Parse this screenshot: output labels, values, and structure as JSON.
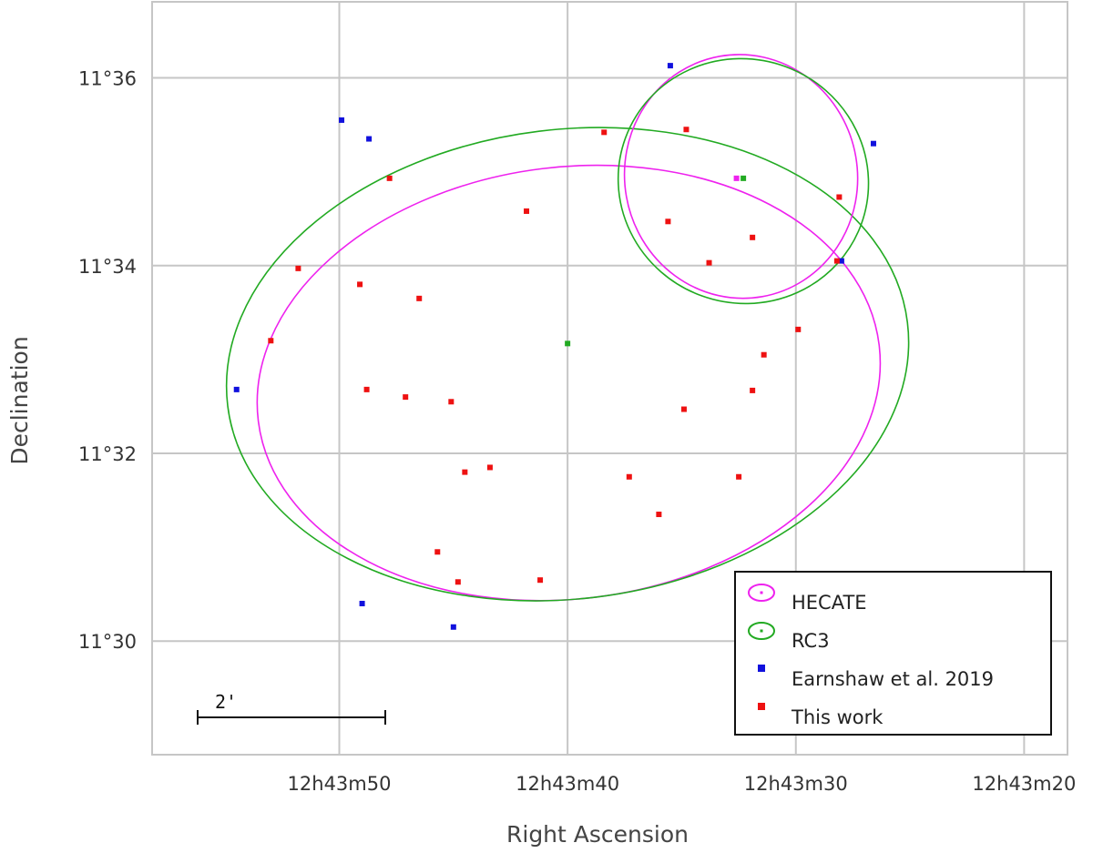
{
  "chart_data": {
    "type": "scatter",
    "title": "",
    "xlabel": "Right Ascension",
    "ylabel": "Declination",
    "x_units": "RA seconds after 12h43m00s",
    "y_units": "Dec arcminutes after 11°00'",
    "x_ticks": [
      {
        "value": 50,
        "label": "12h43m50"
      },
      {
        "value": 40,
        "label": "12h43m40"
      },
      {
        "value": 30,
        "label": "12h43m30"
      },
      {
        "value": 20,
        "label": "12h43m20"
      }
    ],
    "y_ticks": [
      {
        "value": 36,
        "label": "11°36"
      },
      {
        "value": 34,
        "label": "11°34"
      },
      {
        "value": 32,
        "label": "11°32"
      },
      {
        "value": 30,
        "label": "11°30"
      }
    ],
    "xlim": [
      58.2,
      18.1
    ],
    "ylim": [
      28.79,
      36.81
    ],
    "grid": true,
    "legend": {
      "position": "bottom-right",
      "entries": [
        {
          "label": "HECATE",
          "marker": "ellipse",
          "color": "#ee22ee"
        },
        {
          "label": "RC3",
          "marker": "ellipse",
          "color": "#22aa22"
        },
        {
          "label": "Earnshaw et al. 2019",
          "marker": "square",
          "color": "#1111dd"
        },
        {
          "label": "This work",
          "marker": "square",
          "color": "#ee1111"
        }
      ]
    },
    "scale_bar": {
      "label": "2'"
    },
    "ellipses": [
      {
        "series": "HECATE",
        "color": "#ee22ee",
        "center": [
          39.95,
          32.75
        ],
        "semi_x_sec": 13.7,
        "semi_y_arcmin": 2.3,
        "rotation_deg": -7
      },
      {
        "series": "RC3",
        "color": "#22aa22",
        "center": [
          40.0,
          32.95
        ],
        "semi_x_sec": 15.0,
        "semi_y_arcmin": 2.5,
        "rotation_deg": -7
      },
      {
        "series": "HECATE",
        "color": "#ee22ee",
        "center": [
          32.4,
          34.95
        ],
        "semi_x_sec": 5.1,
        "semi_y_arcmin": 1.3,
        "rotation_deg": -10
      },
      {
        "series": "RC3",
        "color": "#22aa22",
        "center": [
          32.3,
          34.9
        ],
        "semi_x_sec": 5.5,
        "semi_y_arcmin": 1.3,
        "rotation_deg": 20
      }
    ],
    "series": [
      {
        "name": "Earnshaw et al. 2019",
        "color": "#1111dd",
        "x": [
          35.5,
          48.7,
          49.9,
          54.5,
          49.0,
          45.0,
          26.6,
          28.0
        ],
        "y": [
          36.13,
          35.35,
          35.55,
          32.68,
          30.4,
          30.15,
          35.3,
          34.05
        ]
      },
      {
        "name": "This work",
        "color": "#ee1111",
        "x": [
          38.4,
          34.8,
          47.8,
          41.8,
          35.6,
          33.8,
          31.9,
          28.1,
          28.2,
          51.8,
          49.1,
          46.5,
          53.0,
          48.8,
          47.1,
          45.1,
          44.5,
          43.4,
          37.3,
          36.0,
          32.5,
          31.4,
          34.9,
          29.9,
          31.9,
          45.7,
          44.8,
          41.2
        ],
        "y": [
          35.42,
          35.45,
          34.93,
          34.58,
          34.47,
          34.03,
          34.3,
          34.73,
          34.05,
          33.97,
          33.8,
          33.65,
          33.2,
          32.68,
          32.6,
          32.55,
          31.8,
          31.85,
          31.75,
          31.35,
          31.75,
          33.05,
          32.47,
          33.32,
          32.67,
          30.95,
          30.63,
          30.65
        ]
      },
      {
        "name": "HECATE",
        "color": "#ee22ee",
        "x": [
          32.6
        ],
        "y": [
          34.93
        ]
      },
      {
        "name": "RC3",
        "color": "#22aa22",
        "x": [
          32.3,
          40.0
        ],
        "y": [
          34.93,
          33.17
        ]
      }
    ]
  }
}
